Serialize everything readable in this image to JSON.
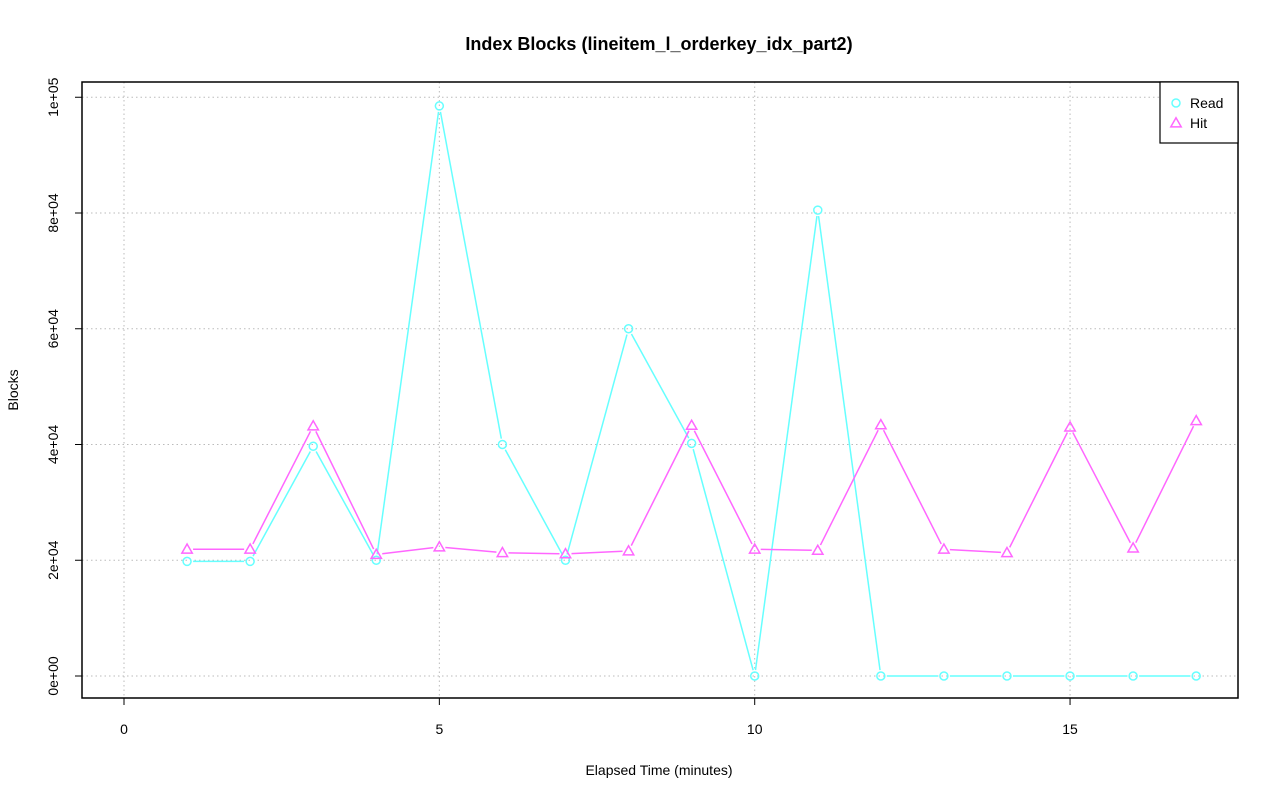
{
  "chart_data": {
    "type": "line",
    "title": "Index Blocks (lineitem_l_orderkey_idx_part2)",
    "xlabel": "Elapsed Time (minutes)",
    "ylabel": "Blocks",
    "xlim": [
      0,
      17
    ],
    "ylim": [
      0,
      100000
    ],
    "x_ticks": [
      0,
      5,
      10,
      15
    ],
    "x_tick_labels": [
      "0",
      "5",
      "10",
      "15"
    ],
    "y_ticks": [
      0,
      20000,
      40000,
      60000,
      80000,
      100000
    ],
    "y_tick_labels": [
      "0e+00",
      "2e+04",
      "4e+04",
      "6e+04",
      "8e+04",
      "1e+05"
    ],
    "grid": true,
    "legend_position": "top-right",
    "x": [
      1,
      2,
      3,
      4,
      5,
      6,
      7,
      8,
      9,
      10,
      11,
      12,
      13,
      14,
      15,
      16,
      17
    ],
    "series": [
      {
        "name": "Read",
        "color": "#66ffff",
        "marker": "circle",
        "values": [
          19800,
          19800,
          39700,
          20000,
          98500,
          40000,
          20000,
          60000,
          40200,
          0,
          80500,
          0,
          0,
          0,
          0,
          0,
          0
        ]
      },
      {
        "name": "Hit",
        "color": "#ff66ff",
        "marker": "triangle",
        "values": [
          21900,
          21900,
          43200,
          21000,
          22300,
          21300,
          21100,
          21600,
          43300,
          21900,
          21700,
          43400,
          21900,
          21300,
          43000,
          22100,
          44100
        ]
      }
    ]
  }
}
